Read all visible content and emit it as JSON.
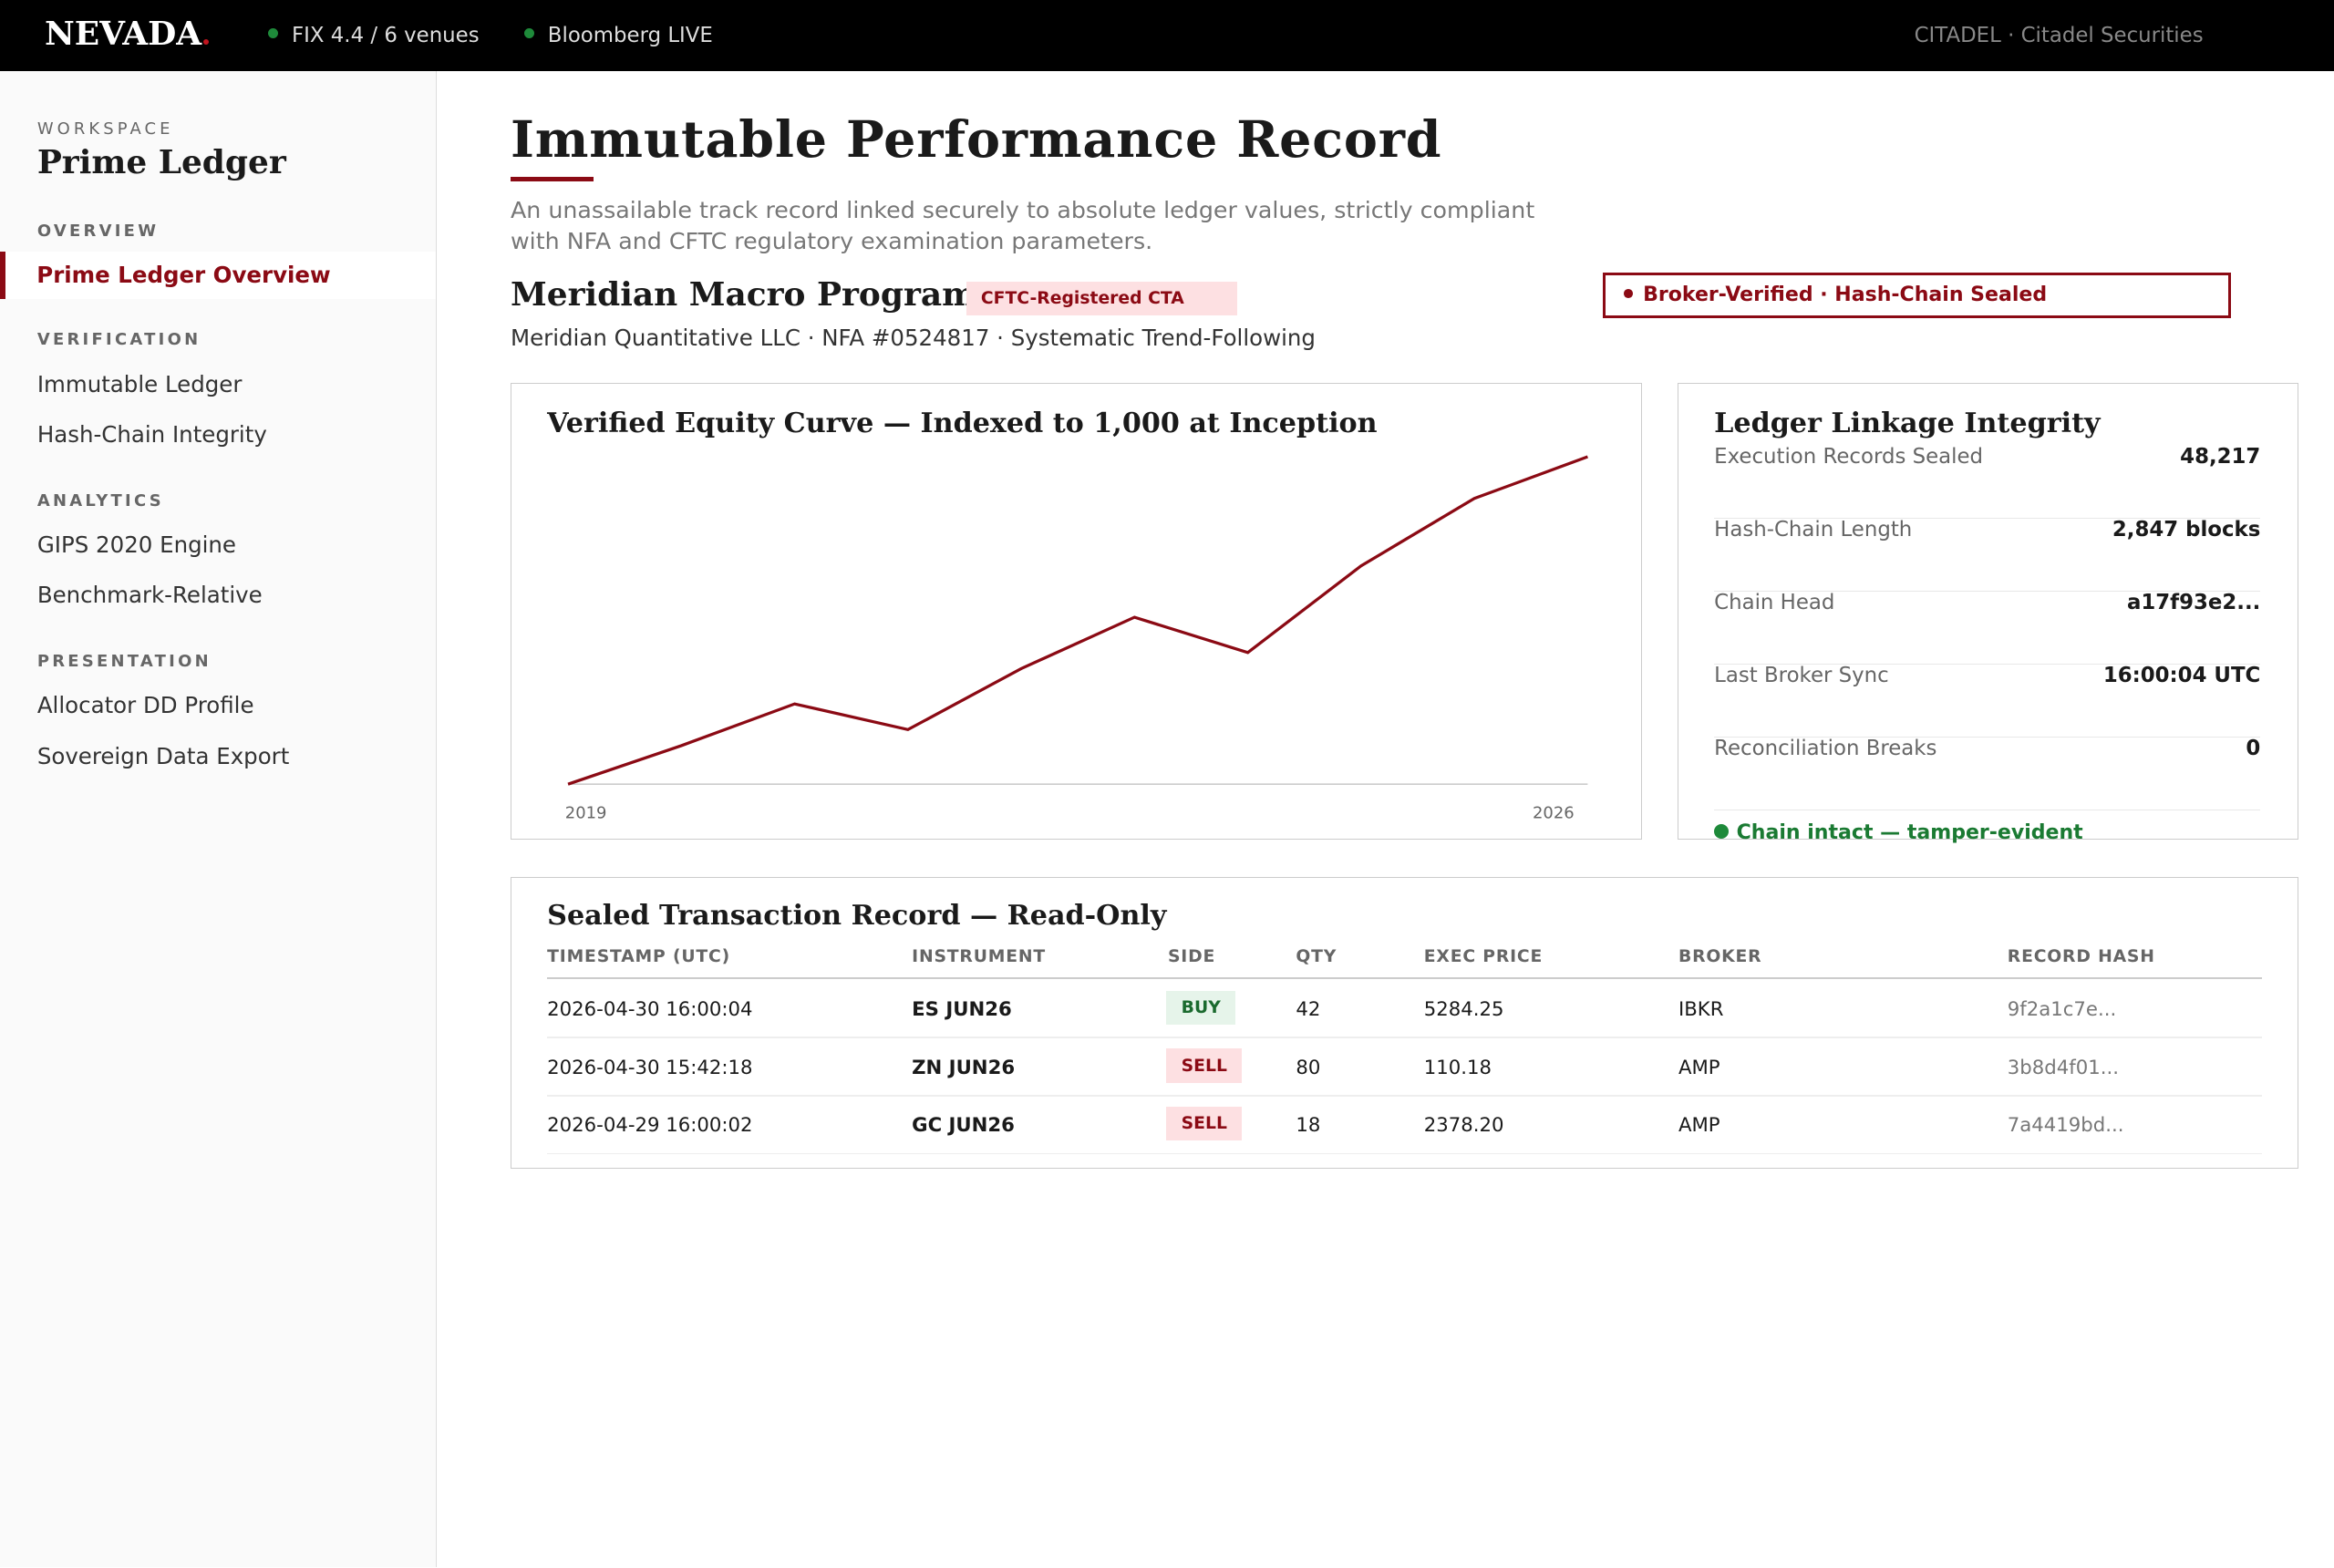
{
  "topbar": {
    "brand": "NEVADA",
    "status": [
      "FIX 4.4 / 6 venues",
      "Bloomberg LIVE"
    ],
    "account": "CITADEL · Citadel Securities"
  },
  "sidebar": {
    "eyebrow": "WORKSPACE",
    "workspace": "Prime Ledger",
    "sections": [
      {
        "heading": "OVERVIEW",
        "items": [
          "Prime Ledger Overview"
        ]
      },
      {
        "heading": "VERIFICATION",
        "items": [
          "Immutable Ledger",
          "Hash-Chain Integrity"
        ]
      },
      {
        "heading": "ANALYTICS",
        "items": [
          "GIPS 2020 Engine",
          "Benchmark-Relative"
        ]
      },
      {
        "heading": "PRESENTATION",
        "items": [
          "Allocator DD Profile",
          "Sovereign Data Export"
        ]
      }
    ]
  },
  "header": {
    "title": "Immutable Performance Record",
    "subtitle": "An unassailable track record linked securely to absolute ledger values, strictly compliant with NFA and CFTC regulatory examination parameters.",
    "program": "Meridian Macro Program",
    "program_badge": "CFTC-Registered CTA",
    "program_meta": "Meridian Quantitative LLC · NFA #0524817 · Systematic Trend-Following",
    "verified_badge": "Broker-Verified · Hash-Chain Sealed"
  },
  "chart_data": {
    "type": "line",
    "title": "Verified Equity Curve — Indexed to 1,000 at Inception",
    "categories": [
      "2019",
      null,
      null,
      null,
      null,
      null,
      null,
      null,
      null,
      "2026"
    ],
    "values": [
      1000,
      1120,
      1250,
      1170,
      1360,
      1520,
      1410,
      1680,
      1890,
      2020
    ],
    "color": "#8b0a14"
  },
  "integrity": {
    "title": "Ledger Linkage Integrity",
    "rows": [
      [
        "Execution Records Sealed",
        "48,217"
      ],
      [
        "Hash-Chain Length",
        "2,847 blocks"
      ],
      [
        "Chain Head",
        "a17f93e2..."
      ],
      [
        "Last Broker Sync",
        "16:00:04 UTC"
      ],
      [
        "Reconciliation Breaks",
        "0"
      ]
    ],
    "status": "Chain intact — tamper-evident"
  },
  "table": {
    "title": "Sealed Transaction Record — Read-Only",
    "columns": [
      "TIMESTAMP (UTC)",
      "INSTRUMENT",
      "SIDE",
      "QTY",
      "EXEC PRICE",
      "BROKER",
      "RECORD HASH"
    ],
    "rows": [
      [
        "2026-04-30 16:00:04",
        "ES JUN26",
        "BUY",
        "42",
        "5284.25",
        "IBKR",
        "9f2a1c7e..."
      ],
      [
        "2026-04-30 15:42:18",
        "ZN JUN26",
        "SELL",
        "80",
        "110.18",
        "AMP",
        "3b8d4f01..."
      ],
      [
        "2026-04-29 16:00:02",
        "GC JUN26",
        "SELL",
        "18",
        "2378.20",
        "AMP",
        "7a4419bd..."
      ]
    ]
  }
}
